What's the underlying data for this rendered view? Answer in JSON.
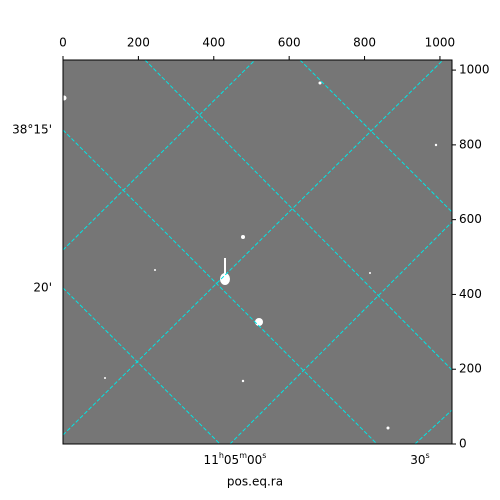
{
  "chart_data": {
    "type": "image",
    "xlabel": "pos.eq.ra",
    "xlim": [
      0,
      1032
    ],
    "ylim": [
      0,
      1027
    ],
    "xticks": [
      0,
      200,
      400,
      600,
      800,
      1000
    ],
    "yticks": [
      0,
      200,
      400,
      600,
      800,
      1000
    ],
    "dec_ticks": [
      "38°15'",
      "20'"
    ],
    "ra_ticks": [
      "11h05m00s",
      "30s"
    ],
    "grid_color": "#00e5e5"
  }
}
